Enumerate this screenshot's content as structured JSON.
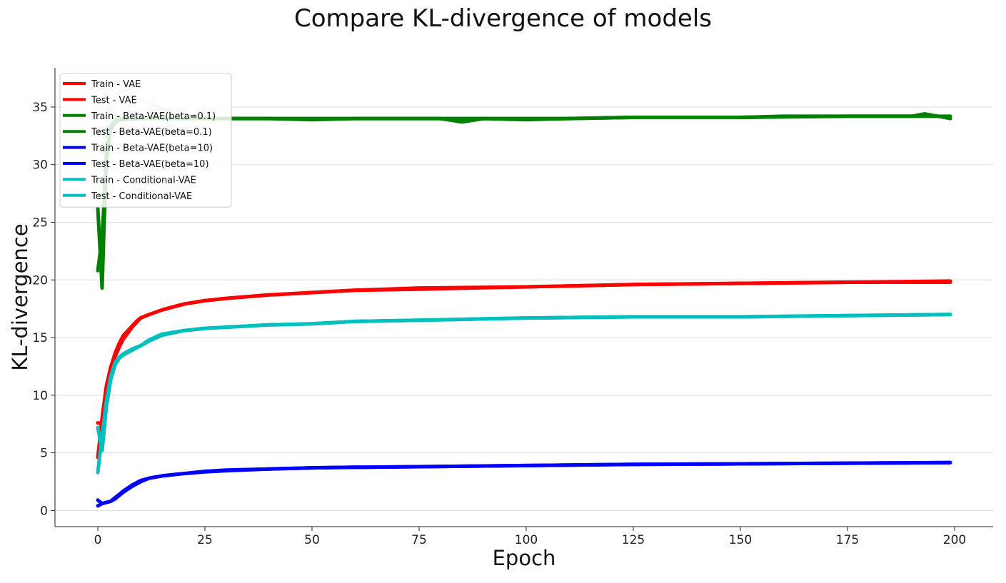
{
  "chart_data": {
    "type": "line",
    "title": "Compare KL-divergence of models",
    "xlabel": "Epoch",
    "ylabel": "KL-divergence",
    "xlim": [
      -10,
      209
    ],
    "ylim": [
      -1.4,
      38.4
    ],
    "xticks": [
      0,
      25,
      50,
      75,
      100,
      125,
      150,
      175,
      200
    ],
    "yticks": [
      0,
      5,
      10,
      15,
      20,
      25,
      30,
      35
    ],
    "grid": "horizontal",
    "legend_position": "top-left",
    "series": [
      {
        "name": "Train - VAE",
        "color": "#ff0000",
        "x": [
          0,
          1,
          2,
          3,
          4,
          5,
          6,
          7,
          8,
          9,
          10,
          12,
          15,
          20,
          25,
          30,
          40,
          50,
          60,
          75,
          100,
          125,
          150,
          175,
          199
        ],
        "y": [
          4.6,
          8.0,
          10.8,
          12.4,
          13.6,
          14.5,
          15.2,
          15.6,
          16.0,
          16.4,
          16.7,
          17.0,
          17.4,
          17.9,
          18.2,
          18.4,
          18.7,
          18.9,
          19.1,
          19.3,
          19.4,
          19.6,
          19.7,
          19.8,
          19.9
        ]
      },
      {
        "name": "Test - VAE",
        "color": "#ff0000",
        "x": [
          0,
          1,
          2,
          3,
          4,
          5,
          6,
          7,
          8,
          9,
          10,
          12,
          15,
          20,
          25,
          30,
          40,
          50,
          60,
          75,
          100,
          125,
          150,
          175,
          199
        ],
        "y": [
          7.6,
          7.5,
          10.2,
          12.0,
          13.3,
          14.2,
          14.9,
          15.4,
          15.9,
          16.3,
          16.7,
          17.0,
          17.4,
          17.9,
          18.2,
          18.4,
          18.7,
          18.9,
          19.1,
          19.2,
          19.4,
          19.6,
          19.7,
          19.8,
          19.8
        ]
      },
      {
        "name": "Train - Beta-VAE(beta=0.1)",
        "color": "#008000",
        "x": [
          0,
          1,
          2,
          3,
          4,
          5,
          10,
          20,
          30,
          40,
          50,
          60,
          70,
          80,
          85,
          90,
          100,
          110,
          125,
          150,
          160,
          175,
          190,
          193,
          199
        ],
        "y": [
          20.8,
          23.6,
          30.5,
          33.0,
          33.6,
          33.9,
          34.0,
          34.0,
          34.0,
          34.0,
          34.0,
          34.0,
          34.0,
          34.0,
          33.7,
          34.0,
          33.9,
          34.0,
          34.1,
          34.1,
          34.2,
          34.2,
          34.2,
          34.4,
          34.0
        ]
      },
      {
        "name": "Test - Beta-VAE(beta=0.1)",
        "color": "#008000",
        "x": [
          0,
          1,
          2,
          3,
          4,
          5,
          10,
          20,
          30,
          40,
          50,
          60,
          70,
          80,
          90,
          100,
          110,
          125,
          150,
          175,
          199
        ],
        "y": [
          26.2,
          19.3,
          31.0,
          33.3,
          33.8,
          34.0,
          34.0,
          34.0,
          34.0,
          34.0,
          33.9,
          34.0,
          34.0,
          34.0,
          34.0,
          34.0,
          34.0,
          34.1,
          34.1,
          34.2,
          34.2
        ]
      },
      {
        "name": "Train - Beta-VAE(beta=10)",
        "color": "#0000ff",
        "x": [
          0,
          1,
          2,
          3,
          4,
          5,
          6,
          8,
          10,
          12,
          15,
          20,
          25,
          30,
          40,
          50,
          60,
          75,
          100,
          125,
          150,
          175,
          199
        ],
        "y": [
          0.4,
          0.6,
          0.7,
          0.8,
          1.1,
          1.4,
          1.7,
          2.2,
          2.6,
          2.8,
          3.0,
          3.2,
          3.4,
          3.5,
          3.6,
          3.7,
          3.75,
          3.8,
          3.9,
          4.0,
          4.05,
          4.1,
          4.15
        ]
      },
      {
        "name": "Test - Beta-VAE(beta=10)",
        "color": "#0000ff",
        "x": [
          0,
          1,
          2,
          3,
          4,
          5,
          6,
          8,
          10,
          12,
          15,
          20,
          25,
          30,
          40,
          50,
          60,
          75,
          100,
          125,
          150,
          175,
          199
        ],
        "y": [
          0.9,
          0.6,
          0.7,
          0.8,
          1.0,
          1.3,
          1.6,
          2.1,
          2.5,
          2.8,
          3.0,
          3.2,
          3.35,
          3.45,
          3.6,
          3.7,
          3.75,
          3.8,
          3.9,
          4.0,
          4.05,
          4.1,
          4.15
        ]
      },
      {
        "name": "Train - Conditional-VAE",
        "color": "#00bfbf",
        "x": [
          0,
          1,
          2,
          3,
          4,
          5,
          6,
          8,
          10,
          12,
          15,
          20,
          25,
          30,
          40,
          50,
          60,
          75,
          100,
          125,
          150,
          175,
          199
        ],
        "y": [
          3.3,
          6.5,
          9.5,
          11.6,
          12.8,
          13.3,
          13.6,
          14.0,
          14.3,
          14.8,
          15.3,
          15.6,
          15.8,
          15.9,
          16.1,
          16.2,
          16.4,
          16.5,
          16.7,
          16.8,
          16.8,
          16.9,
          17.0
        ]
      },
      {
        "name": "Test - Conditional-VAE",
        "color": "#00bfbf",
        "x": [
          0,
          1,
          2,
          3,
          4,
          5,
          6,
          8,
          10,
          12,
          15,
          20,
          25,
          30,
          40,
          50,
          60,
          75,
          100,
          125,
          150,
          175,
          199
        ],
        "y": [
          7.2,
          5.2,
          9.0,
          11.3,
          12.6,
          13.2,
          13.5,
          13.9,
          14.3,
          14.7,
          15.2,
          15.6,
          15.8,
          15.9,
          16.1,
          16.2,
          16.4,
          16.5,
          16.7,
          16.8,
          16.8,
          16.9,
          17.0
        ]
      }
    ],
    "annotations": [
      {
        "color": "#c8e6c9",
        "x": [
          1.5,
          3,
          4,
          5,
          6,
          7,
          8,
          10,
          12,
          14,
          16,
          17
        ],
        "y": [
          32.0,
          35.3,
          35.8,
          36.4,
          36.5,
          36.3,
          35.9,
          35.6,
          35.4,
          35.0,
          34.6,
          34.8
        ]
      }
    ]
  }
}
